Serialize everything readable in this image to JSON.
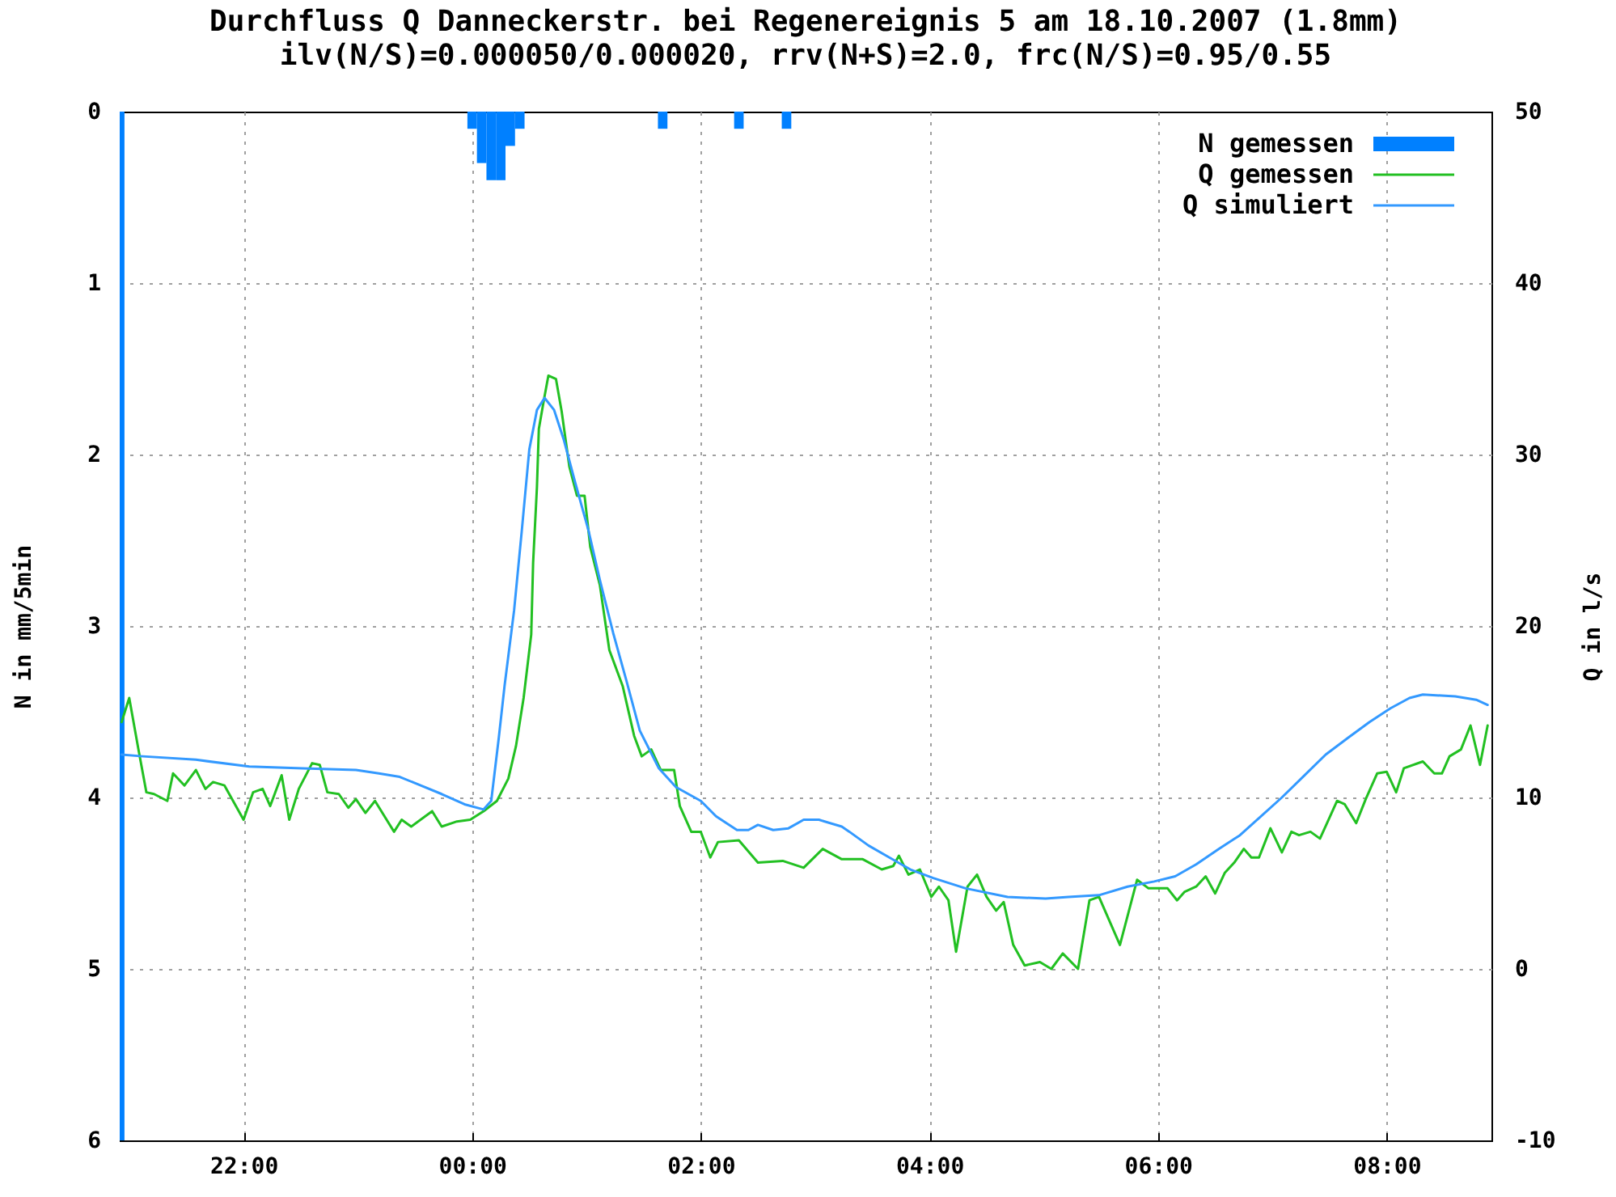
{
  "chart_data": {
    "type": "line",
    "title": "Durchfluss Q Danneckerstr. bei Regenereignis 5 am 18.10.2007 (1.8mm)",
    "subtitle": "ilv(N/S)=0.000050/0.000020, rrv(N+S)=2.0, frc(N/S)=0.95/0.55",
    "ylabel": "N in mm/5min",
    "y2label": "Q in l/s",
    "xlim": [
      "2007-10-17T20:55",
      "2007-10-18T08:55"
    ],
    "xticks": [
      {
        "value": "2007-10-17T22:00",
        "label": "22:00"
      },
      {
        "value": "2007-10-18T00:00",
        "label": "00:00"
      },
      {
        "value": "2007-10-18T02:00",
        "label": "02:00"
      },
      {
        "value": "2007-10-18T04:00",
        "label": "04:00"
      },
      {
        "value": "2007-10-18T06:00",
        "label": "06:00"
      },
      {
        "value": "2007-10-18T08:00",
        "label": "08:00"
      }
    ],
    "ylim": [
      6,
      0
    ],
    "yticks": [
      0,
      1,
      2,
      3,
      4,
      5,
      6
    ],
    "y2lim": [
      -10,
      50
    ],
    "y2ticks": [
      -10,
      0,
      10,
      20,
      30,
      40,
      50
    ],
    "grid": true,
    "legend": "top right",
    "series": [
      {
        "name": "N gemessen",
        "type": "bar",
        "color": "#0080ff",
        "x": [
          "2007-10-17T20:55",
          "2007-10-18T00:00",
          "2007-10-18T00:05",
          "2007-10-18T00:10",
          "2007-10-18T00:15",
          "2007-10-18T00:20",
          "2007-10-18T00:25",
          "2007-10-18T01:40",
          "2007-10-18T02:20",
          "2007-10-18T02:45"
        ],
        "values": [
          6,
          0.1,
          0.3,
          0.4,
          0.4,
          0.2,
          0.1,
          0.1,
          0.1,
          0.1
        ]
      },
      {
        "name": "Q gemessen",
        "axis": "y2",
        "color": "#22c022",
        "x": [
          "2007-10-17T20:56",
          "2007-10-17T21:00",
          "2007-10-17T21:05",
          "2007-10-17T21:09",
          "2007-10-17T21:13",
          "2007-10-17T21:20",
          "2007-10-17T21:23",
          "2007-10-17T21:29",
          "2007-10-17T21:35",
          "2007-10-17T21:40",
          "2007-10-17T21:44",
          "2007-10-17T21:50",
          "2007-10-17T22:00",
          "2007-10-17T22:05",
          "2007-10-17T22:10",
          "2007-10-17T22:14",
          "2007-10-17T22:20",
          "2007-10-17T22:24",
          "2007-10-17T22:29",
          "2007-10-17T22:36",
          "2007-10-17T22:40",
          "2007-10-17T22:44",
          "2007-10-17T22:50",
          "2007-10-17T22:55",
          "2007-10-17T22:59",
          "2007-10-17T23:04",
          "2007-10-17T23:09",
          "2007-10-17T23:19",
          "2007-10-17T23:23",
          "2007-10-17T23:28",
          "2007-10-17T23:39",
          "2007-10-17T23:44",
          "2007-10-17T23:52",
          "2007-10-17T23:59",
          "2007-10-18T00:06",
          "2007-10-18T00:13",
          "2007-10-18T00:19",
          "2007-10-18T00:23",
          "2007-10-18T00:27",
          "2007-10-18T00:31",
          "2007-10-18T00:32",
          "2007-10-18T00:34",
          "2007-10-18T00:35",
          "2007-10-18T00:38",
          "2007-10-18T00:40",
          "2007-10-18T00:44",
          "2007-10-18T00:47",
          "2007-10-18T00:51",
          "2007-10-18T00:55",
          "2007-10-18T00:59",
          "2007-10-18T01:02",
          "2007-10-18T01:07",
          "2007-10-18T01:12",
          "2007-10-18T01:19",
          "2007-10-18T01:25",
          "2007-10-18T01:29",
          "2007-10-18T01:34",
          "2007-10-18T01:39",
          "2007-10-18T01:46",
          "2007-10-18T01:49",
          "2007-10-18T01:55",
          "2007-10-18T02:00",
          "2007-10-18T02:05",
          "2007-10-18T02:09",
          "2007-10-18T02:20",
          "2007-10-18T02:30",
          "2007-10-18T02:43",
          "2007-10-18T02:54",
          "2007-10-18T03:04",
          "2007-10-18T03:14",
          "2007-10-18T03:25",
          "2007-10-18T03:35",
          "2007-10-18T03:41",
          "2007-10-18T03:44",
          "2007-10-18T03:49",
          "2007-10-18T03:55",
          "2007-10-18T04:01",
          "2007-10-18T04:05",
          "2007-10-18T04:10",
          "2007-10-18T04:14",
          "2007-10-18T04:20",
          "2007-10-18T04:25",
          "2007-10-18T04:30",
          "2007-10-18T04:35",
          "2007-10-18T04:39",
          "2007-10-18T04:44",
          "2007-10-18T04:50",
          "2007-10-18T04:58",
          "2007-10-18T05:04",
          "2007-10-18T05:10",
          "2007-10-18T05:18",
          "2007-10-18T05:24",
          "2007-10-18T05:29",
          "2007-10-18T05:40",
          "2007-10-18T05:49",
          "2007-10-18T05:55",
          "2007-10-18T06:05",
          "2007-10-18T06:10",
          "2007-10-18T06:14",
          "2007-10-18T06:20",
          "2007-10-18T06:25",
          "2007-10-18T06:30",
          "2007-10-18T06:35",
          "2007-10-18T06:40",
          "2007-10-18T06:45",
          "2007-10-18T06:49",
          "2007-10-18T06:53",
          "2007-10-18T06:59",
          "2007-10-18T07:05",
          "2007-10-18T07:10",
          "2007-10-18T07:14",
          "2007-10-18T07:20",
          "2007-10-18T07:25",
          "2007-10-18T07:34",
          "2007-10-18T07:38",
          "2007-10-18T07:44",
          "2007-10-18T07:49",
          "2007-10-18T07:55",
          "2007-10-18T08:00",
          "2007-10-18T08:05",
          "2007-10-18T08:09",
          "2007-10-18T08:19",
          "2007-10-18T08:25",
          "2007-10-18T08:29",
          "2007-10-18T08:33",
          "2007-10-18T08:39",
          "2007-10-18T08:44",
          "2007-10-18T08:49",
          "2007-10-18T08:53"
        ],
        "values": [
          14.4,
          15.8,
          12.7,
          10.3,
          10.2,
          9.8,
          11.4,
          10.7,
          11.6,
          10.5,
          10.9,
          10.7,
          8.7,
          10.3,
          10.5,
          9.5,
          11.3,
          8.7,
          10.5,
          12.0,
          11.9,
          10.3,
          10.2,
          9.4,
          9.9,
          9.1,
          9.8,
          8.0,
          8.7,
          8.3,
          9.2,
          8.3,
          8.6,
          8.7,
          9.2,
          9.8,
          11.1,
          13.0,
          15.8,
          19.5,
          23.7,
          28.1,
          31.5,
          33.4,
          34.6,
          34.4,
          32.5,
          29.3,
          27.6,
          27.6,
          24.6,
          22.4,
          18.6,
          16.5,
          13.6,
          12.4,
          12.8,
          11.6,
          11.6,
          9.5,
          8.0,
          8.0,
          6.5,
          7.4,
          7.5,
          6.2,
          6.3,
          5.9,
          7.0,
          6.4,
          6.4,
          5.8,
          6.0,
          6.6,
          5.5,
          5.8,
          4.2,
          4.8,
          4.0,
          1.0,
          4.8,
          5.5,
          4.2,
          3.4,
          3.9,
          1.4,
          0.2,
          0.4,
          0.0,
          0.9,
          0.0,
          4.0,
          4.2,
          1.4,
          5.2,
          4.7,
          4.7,
          4.0,
          4.5,
          4.8,
          5.4,
          4.4,
          5.6,
          6.2,
          7.0,
          6.5,
          6.5,
          8.2,
          6.8,
          8.0,
          7.8,
          8.0,
          7.6,
          9.8,
          9.6,
          8.5,
          9.9,
          11.4,
          11.5,
          10.3,
          11.7,
          12.1,
          11.4,
          11.4,
          12.4,
          12.8,
          14.2,
          11.9,
          14.2
        ]
      },
      {
        "name": "Q simuliert",
        "axis": "y2",
        "color": "#3399ff",
        "x": [
          "2007-10-17T20:56",
          "2007-10-17T21:07",
          "2007-10-17T21:35",
          "2007-10-17T22:03",
          "2007-10-17T22:31",
          "2007-10-17T22:59",
          "2007-10-17T23:11",
          "2007-10-17T23:22",
          "2007-10-17T23:33",
          "2007-10-17T23:44",
          "2007-10-17T23:56",
          "2007-10-18T00:06",
          "2007-10-18T00:10",
          "2007-10-18T00:14",
          "2007-10-18T00:17",
          "2007-10-18T00:22",
          "2007-10-18T00:26",
          "2007-10-18T00:30",
          "2007-10-18T00:34",
          "2007-10-18T00:38",
          "2007-10-18T00:43",
          "2007-10-18T00:48",
          "2007-10-18T00:54",
          "2007-10-18T01:01",
          "2007-10-18T01:07",
          "2007-10-18T01:14",
          "2007-10-18T01:21",
          "2007-10-18T01:28",
          "2007-10-18T01:38",
          "2007-10-18T01:47",
          "2007-10-18T02:00",
          "2007-10-18T02:08",
          "2007-10-18T02:19",
          "2007-10-18T02:25",
          "2007-10-18T02:30",
          "2007-10-18T02:38",
          "2007-10-18T02:46",
          "2007-10-18T02:54",
          "2007-10-18T03:02",
          "2007-10-18T03:14",
          "2007-10-18T03:18",
          "2007-10-18T03:28",
          "2007-10-18T03:39",
          "2007-10-18T03:50",
          "2007-10-18T04:02",
          "2007-10-18T04:19",
          "2007-10-18T04:41",
          "2007-10-18T05:01",
          "2007-10-18T05:13",
          "2007-10-18T05:29",
          "2007-10-18T05:44",
          "2007-10-18T05:58",
          "2007-10-18T06:09",
          "2007-10-18T06:20",
          "2007-10-18T06:32",
          "2007-10-18T06:43",
          "2007-10-18T06:54",
          "2007-10-18T07:05",
          "2007-10-18T07:17",
          "2007-10-18T07:28",
          "2007-10-18T07:40",
          "2007-10-18T07:51",
          "2007-10-18T08:02",
          "2007-10-18T08:12",
          "2007-10-18T08:19",
          "2007-10-18T08:36",
          "2007-10-18T08:47",
          "2007-10-18T08:53"
        ],
        "values": [
          12.5,
          12.4,
          12.2,
          11.8,
          11.7,
          11.6,
          11.4,
          11.2,
          10.7,
          10.2,
          9.6,
          9.3,
          9.8,
          13.5,
          16.5,
          20.9,
          25.5,
          30.3,
          32.6,
          33.3,
          32.6,
          30.9,
          28.4,
          25.6,
          22.7,
          19.6,
          16.8,
          13.9,
          11.7,
          10.6,
          9.8,
          8.9,
          8.1,
          8.1,
          8.4,
          8.1,
          8.2,
          8.7,
          8.7,
          8.3,
          8.0,
          7.2,
          6.5,
          5.8,
          5.3,
          4.7,
          4.2,
          4.1,
          4.2,
          4.3,
          4.8,
          5.1,
          5.4,
          6.1,
          7.0,
          7.8,
          8.9,
          10.0,
          11.3,
          12.5,
          13.5,
          14.4,
          15.2,
          15.8,
          16.0,
          15.9,
          15.7,
          15.4
        ]
      }
    ]
  }
}
